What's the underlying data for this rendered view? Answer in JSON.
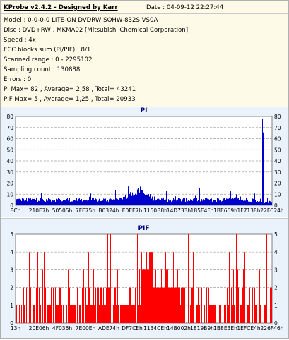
{
  "header": {
    "title": "KProbe v2.4.2 - Designed by Karr",
    "date": "Date : 04-09-12 22:27:44"
  },
  "info_lines": [
    "Model : 0-0-0-0 LITE-ON DVDRW SOHW-832S  VS0A",
    "Disc : DVD+RW , MKMA02 [Mitsubishi Chemical Corporation]",
    "Speed : 4x",
    "ECC blocks sum (PI/PIF) : 8/1",
    "Scanned range : 0 - 2295102",
    "Sampling count : 130888",
    "Errors : 0",
    "PI Max= 82 , Average= 2,58 , Total= 43241",
    "PIF Max= 5 , Average= 1,25 , Total= 20933"
  ],
  "colors": {
    "pi_series": "#0000cc",
    "pif_series": "#ff0000",
    "title_text": "#000080",
    "plot_bg": "#ffffff",
    "panel_bg": "#eaf2fb"
  },
  "chart_data": [
    {
      "type": "bar",
      "title": "PI",
      "ylim": [
        0,
        80
      ],
      "yticks": [
        "0",
        "10",
        "20",
        "30",
        "40",
        "50",
        "60",
        "70",
        "80"
      ],
      "xticks": [
        "8Ch",
        "210E7h",
        "50505h",
        "7FE75h",
        "B0324h",
        "E0EE7h",
        "1150B8h",
        "14D733h",
        "185E4Fh",
        "1BE669h",
        "1F7138h",
        "22FC24h"
      ],
      "grid": true,
      "series": [
        {
          "values_summary": {
            "baseline_avg": 3,
            "noise_max": 15,
            "bump_region": [
              0.4,
              0.55
            ],
            "bump_level": 14,
            "spike_position": 0.965,
            "spike_value": 82
          }
        }
      ]
    },
    {
      "type": "bar",
      "title": "PIF",
      "ylim": [
        0,
        5
      ],
      "yticks": [
        "0",
        "1",
        "2",
        "3",
        "4",
        "5"
      ],
      "xticks": [
        "13h",
        "20E06h",
        "4F036h",
        "7E00Eh",
        "ADE74h",
        "DF7CEh",
        "1134CEh",
        "14B002h",
        "1819B9h",
        "1B8E3Eh",
        "1EFCE4h",
        "226F46h"
      ],
      "grid": true,
      "series": [
        {
          "values_summary": {
            "typical": 1,
            "region_high": [
              0.49,
              0.66
            ],
            "region_high_level": 2,
            "region_peak": [
              0.49,
              0.53
            ],
            "region_peak_level": 4,
            "max": 5
          }
        }
      ]
    }
  ]
}
